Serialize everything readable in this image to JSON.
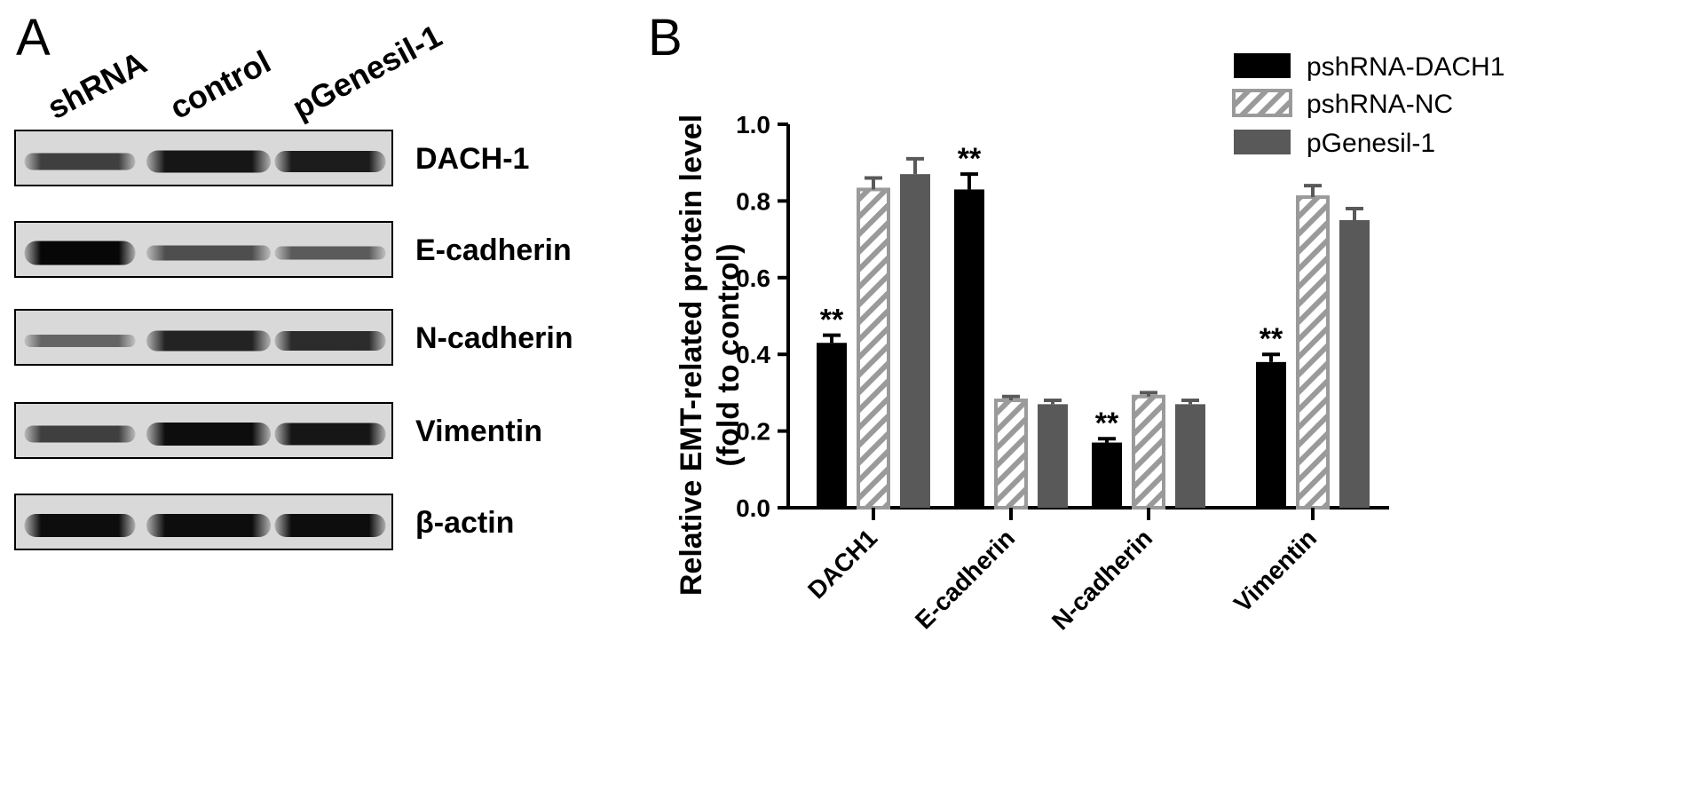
{
  "panels": {
    "a_label": "A",
    "b_label": "B"
  },
  "blot": {
    "lanes": [
      "shRNA",
      "control",
      "pGenesil-1"
    ],
    "rows": [
      {
        "protein": "DACH-1",
        "intensity": [
          0.55,
          0.85,
          0.8
        ]
      },
      {
        "protein": "E-cadherin",
        "intensity": [
          0.95,
          0.45,
          0.35
        ]
      },
      {
        "protein": "N-cadherin",
        "intensity": [
          0.3,
          0.75,
          0.7
        ]
      },
      {
        "protein": "Vimentin",
        "intensity": [
          0.55,
          0.9,
          0.85
        ]
      },
      {
        "protein": "β-actin",
        "intensity": [
          0.9,
          0.9,
          0.9
        ]
      }
    ]
  },
  "chart_data": {
    "type": "bar",
    "title": "",
    "ylabel_line1": "Relative EMT-related protein level",
    "ylabel_line2": "(fold  to control)",
    "xlabel": "",
    "ylim": [
      0.0,
      1.0
    ],
    "yticks": [
      "0.0",
      "0.2",
      "0.4",
      "0.6",
      "0.8",
      "1.0"
    ],
    "categories": [
      "DACH1",
      "E-cadherin",
      "N-cadherin",
      "Vimentin"
    ],
    "series": [
      {
        "name": "pshRNA-DACH1",
        "values": [
          0.43,
          0.83,
          0.17,
          0.38
        ],
        "errors": [
          0.02,
          0.04,
          0.01,
          0.02
        ],
        "color": "#000000",
        "pattern": "solid"
      },
      {
        "name": "pshRNA-NC",
        "values": [
          0.83,
          0.28,
          0.29,
          0.81
        ],
        "errors": [
          0.03,
          0.01,
          0.01,
          0.03
        ],
        "color": "#9a9a9a",
        "pattern": "hatch"
      },
      {
        "name": "pGenesil-1",
        "values": [
          0.87,
          0.27,
          0.27,
          0.75
        ],
        "errors": [
          0.04,
          0.01,
          0.01,
          0.03
        ],
        "color": "#595959",
        "pattern": "solid"
      }
    ],
    "annotations": [
      {
        "series": 0,
        "category": 0,
        "text": "**"
      },
      {
        "series": 0,
        "category": 1,
        "text": "**"
      },
      {
        "series": 0,
        "category": 2,
        "text": "**"
      },
      {
        "series": 0,
        "category": 3,
        "text": "**"
      }
    ],
    "legend_position": "top-right",
    "grid": false
  }
}
